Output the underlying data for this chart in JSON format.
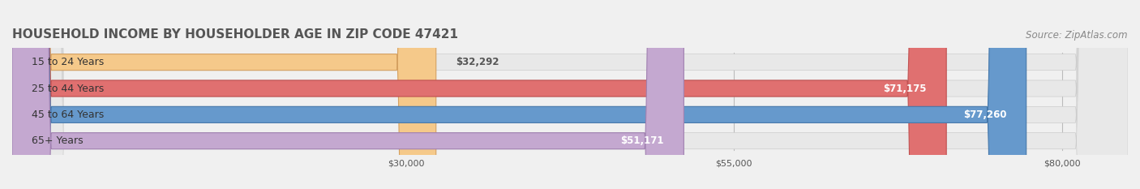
{
  "title": "HOUSEHOLD INCOME BY HOUSEHOLDER AGE IN ZIP CODE 47421",
  "source_text": "Source: ZipAtlas.com",
  "categories": [
    "15 to 24 Years",
    "25 to 44 Years",
    "45 to 64 Years",
    "65+ Years"
  ],
  "values": [
    32292,
    71175,
    77260,
    51171
  ],
  "bar_colors": [
    "#f5c98a",
    "#e07070",
    "#6699cc",
    "#c4a8d0"
  ],
  "bar_edge_colors": [
    "#d4a060",
    "#c05050",
    "#4477aa",
    "#a080b0"
  ],
  "value_labels": [
    "$32,292",
    "$71,175",
    "$77,260",
    "$51,171"
  ],
  "x_ticks": [
    30000,
    55000,
    80000
  ],
  "x_tick_labels": [
    "$30,000",
    "$55,000",
    "$80,000"
  ],
  "xlim": [
    0,
    85000
  ],
  "background_color": "#f0f0f0",
  "bar_bg_color": "#e8e8e8",
  "title_fontsize": 11,
  "source_fontsize": 8.5,
  "label_fontsize": 9,
  "value_fontsize": 8.5,
  "tick_fontsize": 8
}
